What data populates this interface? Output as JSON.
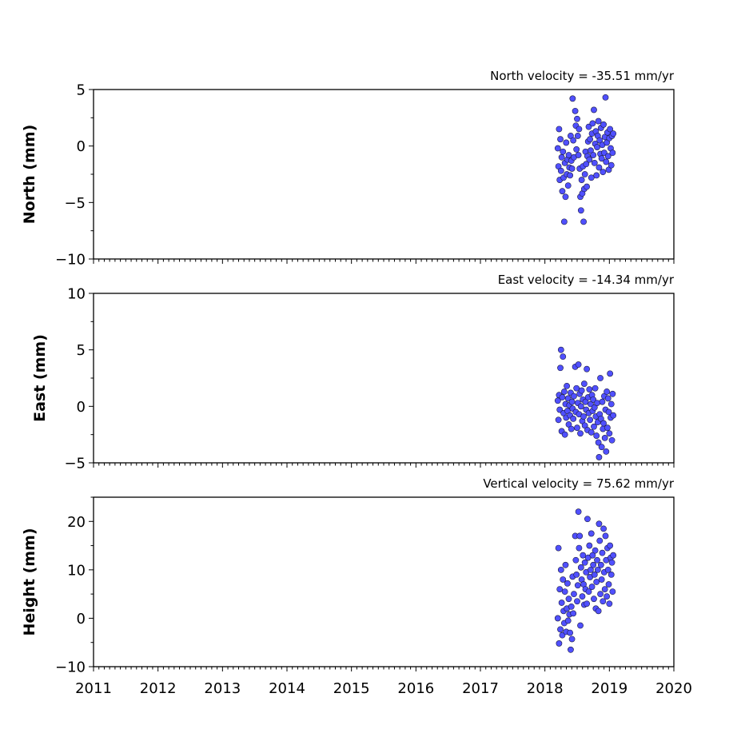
{
  "chart_data": [
    {
      "type": "scatter",
      "panel": "north",
      "velocity_text": "North velocity = -35.51 mm/yr",
      "ylabel": "North (mm)",
      "ylim": [
        -10,
        5
      ],
      "yticks": [
        5,
        0,
        -5,
        -10
      ],
      "ytick_labels": [
        "5",
        "0",
        "−5",
        "−10"
      ],
      "xlim": [
        2011,
        2020
      ],
      "marker_color": "#5050ff",
      "series": [
        {
          "x": [
            2018.2,
            2018.21,
            2018.22,
            2018.23,
            2018.24,
            2018.25,
            2018.26,
            2018.27,
            2018.28,
            2018.29,
            2018.3,
            2018.31,
            2018.32,
            2018.33,
            2018.34,
            2018.35,
            2018.36,
            2018.37,
            2018.38,
            2018.39,
            2018.4,
            2018.41,
            2018.42,
            2018.43,
            2018.44,
            2018.45,
            2018.47,
            2018.48,
            2018.49,
            2018.5,
            2018.51,
            2018.52,
            2018.53,
            2018.54,
            2018.55,
            2018.56,
            2018.57,
            2018.58,
            2018.59,
            2018.6,
            2018.61,
            2018.62,
            2018.63,
            2018.64,
            2018.65,
            2018.66,
            2018.67,
            2018.68,
            2018.69,
            2018.7,
            2018.71,
            2018.72,
            2018.73,
            2018.74,
            2018.75,
            2018.76,
            2018.77,
            2018.78,
            2018.79,
            2018.8,
            2018.81,
            2018.82,
            2018.83,
            2018.84,
            2018.85,
            2018.86,
            2018.87,
            2018.88,
            2018.89,
            2018.9,
            2018.91,
            2018.92,
            2018.93,
            2018.94,
            2018.95,
            2018.96,
            2018.97,
            2018.98,
            2018.99,
            2019.0,
            2019.01,
            2019.02,
            2019.03,
            2019.04,
            2019.05,
            2019.06
          ],
          "y": [
            -0.2,
            -1.8,
            1.5,
            -3.0,
            0.6,
            -2.2,
            -1.0,
            -4.0,
            -0.5,
            -2.8,
            -6.7,
            -1.5,
            -4.5,
            0.3,
            -2.5,
            -1.2,
            -3.5,
            -0.8,
            -1.9,
            -2.6,
            0.9,
            -1.3,
            -2.0,
            4.2,
            0.5,
            -1.0,
            3.1,
            1.8,
            -0.3,
            2.4,
            0.9,
            -0.8,
            1.5,
            -2.0,
            -4.5,
            -5.7,
            -3.0,
            -4.2,
            -1.8,
            -6.7,
            -3.8,
            -2.5,
            -0.5,
            -1.6,
            -3.6,
            -0.9,
            0.4,
            1.7,
            -1.2,
            0.6,
            -0.4,
            -2.8,
            1.1,
            2.0,
            -0.8,
            3.2,
            -1.5,
            0.2,
            1.3,
            -2.6,
            -0.1,
            0.9,
            2.2,
            -1.9,
            0.5,
            -0.7,
            1.6,
            -1.1,
            0.1,
            -2.3,
            1.9,
            -0.6,
            0.8,
            4.3,
            -1.4,
            0.3,
            1.2,
            -0.9,
            -2.1,
            0.7,
            1.5,
            -0.2,
            -1.7,
            0.9,
            -0.6,
            1.1
          ],
          "name": ""
        }
      ],
      "grid": false
    },
    {
      "type": "scatter",
      "panel": "east",
      "velocity_text": "East velocity = -14.34 mm/yr",
      "ylabel": "East (mm)",
      "ylim": [
        -5,
        10
      ],
      "yticks": [
        10,
        5,
        0,
        -5
      ],
      "ytick_labels": [
        "10",
        "5",
        "0",
        "−5"
      ],
      "xlim": [
        2011,
        2020
      ],
      "marker_color": "#5050ff",
      "series": [
        {
          "x": [
            2018.2,
            2018.21,
            2018.22,
            2018.23,
            2018.24,
            2018.25,
            2018.26,
            2018.27,
            2018.28,
            2018.29,
            2018.3,
            2018.31,
            2018.32,
            2018.33,
            2018.34,
            2018.35,
            2018.36,
            2018.37,
            2018.38,
            2018.39,
            2018.4,
            2018.41,
            2018.42,
            2018.43,
            2018.44,
            2018.45,
            2018.47,
            2018.48,
            2018.49,
            2018.5,
            2018.51,
            2018.52,
            2018.53,
            2018.54,
            2018.55,
            2018.56,
            2018.57,
            2018.58,
            2018.59,
            2018.6,
            2018.61,
            2018.62,
            2018.63,
            2018.64,
            2018.65,
            2018.66,
            2018.67,
            2018.68,
            2018.69,
            2018.7,
            2018.71,
            2018.72,
            2018.73,
            2018.74,
            2018.75,
            2018.76,
            2018.77,
            2018.78,
            2018.79,
            2018.8,
            2018.81,
            2018.82,
            2018.83,
            2018.84,
            2018.85,
            2018.86,
            2018.87,
            2018.88,
            2018.89,
            2018.9,
            2018.91,
            2018.92,
            2018.93,
            2018.94,
            2018.95,
            2018.96,
            2018.97,
            2018.98,
            2018.99,
            2019.0,
            2019.01,
            2019.02,
            2019.03,
            2019.04,
            2019.05,
            2019.06
          ],
          "y": [
            0.5,
            -1.2,
            1.0,
            -0.3,
            3.4,
            5.0,
            -2.2,
            0.8,
            4.4,
            -0.6,
            1.3,
            -2.5,
            0.2,
            -1.0,
            1.8,
            -0.4,
            0.7,
            -1.6,
            0.1,
            -0.8,
            1.2,
            -2.0,
            0.4,
            -0.2,
            -1.1,
            0.9,
            3.5,
            -0.5,
            1.6,
            -1.9,
            0.3,
            3.7,
            -0.7,
            1.1,
            -2.4,
            0.0,
            1.4,
            -1.3,
            0.6,
            -0.9,
            2.0,
            -1.7,
            0.4,
            -0.3,
            3.3,
            -2.1,
            0.8,
            -0.6,
            1.5,
            -1.2,
            0.2,
            -2.3,
            1.0,
            -0.4,
            0.6,
            -1.8,
            -0.1,
            1.6,
            -0.9,
            -2.6,
            0.3,
            -1.4,
            -3.2,
            -4.5,
            -0.7,
            2.5,
            -1.1,
            -3.6,
            0.4,
            -2.0,
            -1.5,
            0.9,
            -2.8,
            -0.3,
            -4.0,
            1.3,
            -1.9,
            0.7,
            -0.5,
            -2.4,
            2.9,
            -1.0,
            0.2,
            -3.0,
            1.1,
            -0.8
          ],
          "name": ""
        }
      ],
      "grid": false
    },
    {
      "type": "scatter",
      "panel": "height",
      "velocity_text": "Vertical velocity = 75.62 mm/yr",
      "ylabel": "Height (mm)",
      "ylim": [
        -10,
        25
      ],
      "yticks": [
        20,
        10,
        0,
        -10
      ],
      "ytick_labels": [
        "20",
        "10",
        "0",
        "−10"
      ],
      "xlim": [
        2011,
        2020
      ],
      "xticks": [
        2011,
        2012,
        2013,
        2014,
        2015,
        2016,
        2017,
        2018,
        2019,
        2020
      ],
      "xtick_labels": [
        "2011",
        "2012",
        "2013",
        "2014",
        "2015",
        "2016",
        "2017",
        "2018",
        "2019",
        "2020"
      ],
      "marker_color": "#5050ff",
      "series": [
        {
          "x": [
            2018.2,
            2018.21,
            2018.22,
            2018.23,
            2018.24,
            2018.25,
            2018.26,
            2018.27,
            2018.28,
            2018.29,
            2018.3,
            2018.31,
            2018.32,
            2018.33,
            2018.34,
            2018.35,
            2018.36,
            2018.37,
            2018.38,
            2018.39,
            2018.4,
            2018.41,
            2018.42,
            2018.43,
            2018.44,
            2018.45,
            2018.47,
            2018.48,
            2018.49,
            2018.5,
            2018.51,
            2018.52,
            2018.53,
            2018.54,
            2018.55,
            2018.56,
            2018.57,
            2018.58,
            2018.59,
            2018.6,
            2018.61,
            2018.62,
            2018.63,
            2018.64,
            2018.65,
            2018.66,
            2018.67,
            2018.68,
            2018.69,
            2018.7,
            2018.71,
            2018.72,
            2018.73,
            2018.74,
            2018.75,
            2018.76,
            2018.77,
            2018.78,
            2018.79,
            2018.8,
            2018.81,
            2018.82,
            2018.83,
            2018.84,
            2018.85,
            2018.86,
            2018.87,
            2018.88,
            2018.89,
            2018.9,
            2018.91,
            2018.92,
            2018.93,
            2018.94,
            2018.95,
            2018.96,
            2018.97,
            2018.98,
            2018.99,
            2019.0,
            2019.01,
            2019.02,
            2019.03,
            2019.04,
            2019.05,
            2019.06
          ],
          "y": [
            0.0,
            14.5,
            -5.2,
            6.0,
            -2.3,
            10.0,
            3.2,
            -3.5,
            8.0,
            1.5,
            -1.0,
            5.5,
            11.0,
            -2.8,
            2.0,
            7.2,
            -0.5,
            4.0,
            0.8,
            -3.0,
            -6.5,
            2.4,
            -4.3,
            8.6,
            1.0,
            5.0,
            17.0,
            12.0,
            9.0,
            3.5,
            6.8,
            22.0,
            14.5,
            17.0,
            -1.5,
            10.5,
            8.0,
            4.5,
            13.0,
            7.0,
            2.8,
            11.5,
            6.0,
            9.5,
            3.0,
            20.5,
            12.5,
            5.5,
            15.0,
            8.5,
            10.0,
            17.5,
            6.5,
            13.0,
            11.0,
            4.0,
            9.0,
            14.0,
            2.0,
            7.5,
            12.0,
            10.0,
            1.5,
            19.5,
            16.0,
            5.0,
            11.0,
            8.0,
            13.5,
            3.5,
            18.5,
            9.5,
            6.0,
            17.0,
            12.0,
            4.5,
            14.5,
            10.0,
            7.0,
            3.0,
            15.0,
            12.5,
            9.0,
            11.5,
            5.5,
            13.0
          ],
          "name": ""
        }
      ],
      "grid": false
    }
  ]
}
